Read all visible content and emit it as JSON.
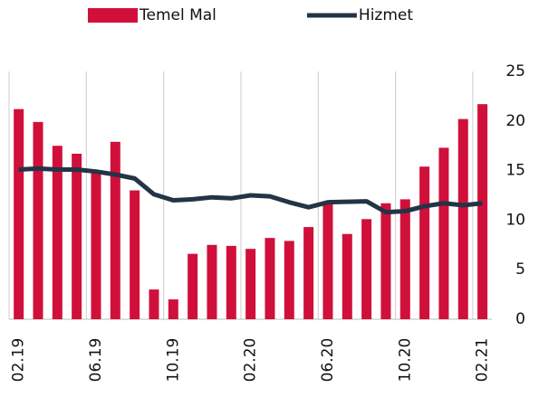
{
  "chart_data": {
    "type": "bar-line",
    "categories": [
      "02.19",
      null,
      null,
      null,
      "06.19",
      null,
      null,
      null,
      "10.19",
      null,
      null,
      null,
      "02.20",
      null,
      null,
      null,
      "06.20",
      null,
      null,
      null,
      "10.20",
      null,
      null,
      null,
      "02.21"
    ],
    "series": [
      {
        "name": "Temel Mal",
        "type": "bar",
        "color": "#d0103a",
        "values": [
          21.2,
          19.9,
          17.5,
          16.7,
          15.0,
          17.9,
          13.0,
          3.0,
          2.0,
          6.6,
          7.5,
          7.4,
          7.1,
          8.2,
          7.9,
          9.3,
          11.6,
          8.6,
          10.1,
          11.7,
          12.1,
          15.4,
          17.3,
          20.2,
          21.7
        ]
      },
      {
        "name": "Hizmet",
        "type": "line",
        "color": "#233447",
        "values": [
          15.1,
          15.2,
          15.1,
          15.1,
          14.9,
          14.6,
          14.2,
          12.6,
          12.0,
          12.1,
          12.3,
          12.2,
          12.5,
          12.4,
          11.8,
          11.3,
          11.8,
          11.85,
          11.9,
          10.8,
          10.9,
          11.4,
          11.7,
          11.5,
          11.7
        ]
      }
    ],
    "ylim": [
      0,
      25
    ],
    "yticks": [
      0,
      5,
      10,
      15,
      20,
      25
    ],
    "grid": true,
    "legend": "top"
  }
}
